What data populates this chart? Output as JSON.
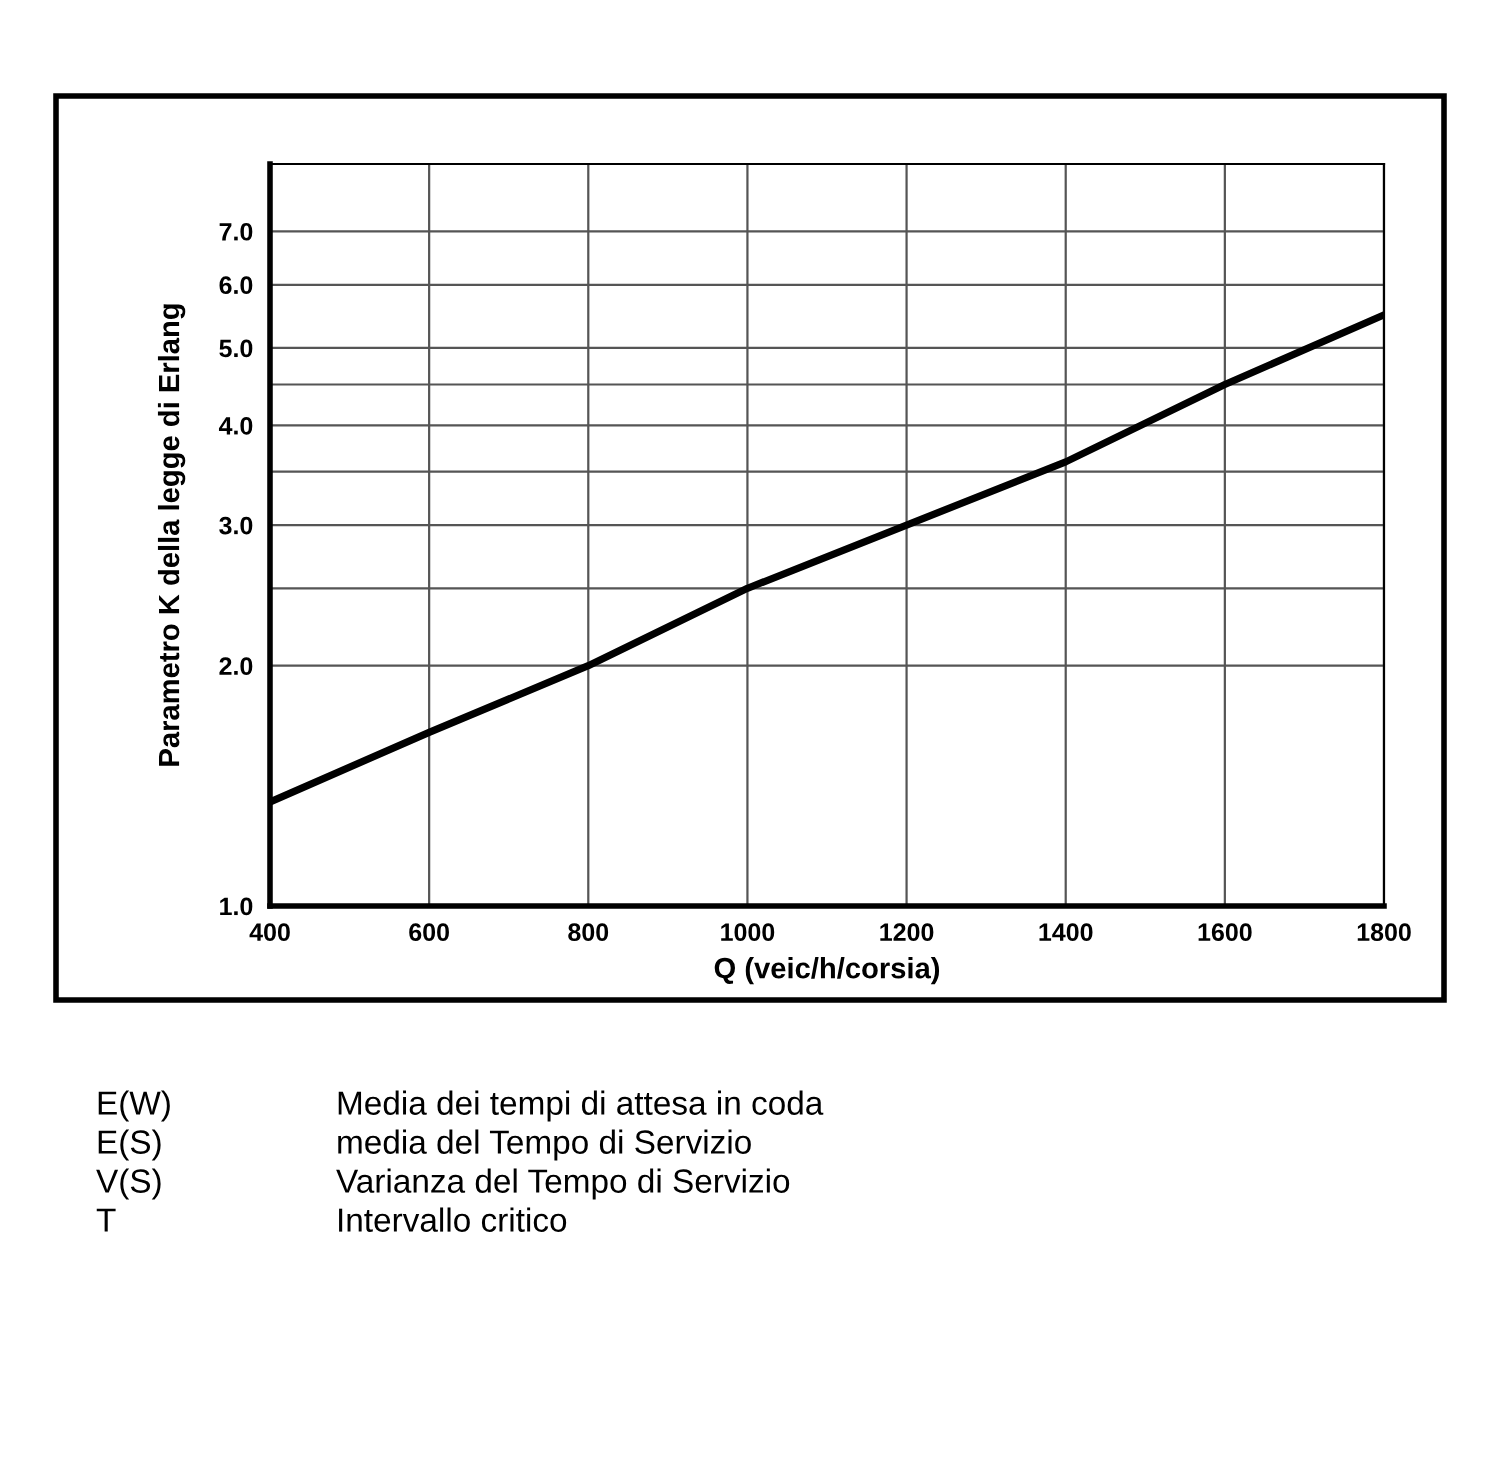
{
  "chart_data": {
    "type": "line",
    "xlabel": "Q (veic/h/corsia)",
    "ylabel": "Parametro K della legge di Erlang",
    "x": [
      400,
      600,
      800,
      1000,
      1200,
      1400,
      1600,
      1800
    ],
    "series": [
      {
        "color": "#000000",
        "values": [
          1.35,
          1.65,
          2.0,
          2.5,
          3.0,
          3.6,
          4.5,
          5.5
        ]
      }
    ],
    "log": "y",
    "xlim": [
      400,
      1800
    ],
    "xticks": [
      400,
      600,
      800,
      1000,
      1200,
      1400,
      1600,
      1800
    ],
    "ylim": [
      1,
      8.5
    ],
    "yticks": [
      {
        "value": 1,
        "label": "1.0"
      },
      {
        "value": 2,
        "label": "2.0"
      },
      {
        "value": 2.5,
        "label": null
      },
      {
        "value": 3,
        "label": "3.0"
      },
      {
        "value": 3.5,
        "label": null
      },
      {
        "value": 4,
        "label": "4.0"
      },
      {
        "value": 4.5,
        "label": null
      },
      {
        "value": 5,
        "label": "5.0"
      },
      {
        "value": 6,
        "label": "6.0"
      },
      {
        "value": 7,
        "label": "7.0"
      }
    ],
    "grid": true,
    "marker": "none",
    "line_style": "solid",
    "annotations": [
      "E(W)",
      "Media dei tempi di attesa in coda",
      "E(S)",
      "media del Tempo di Servizio",
      "V(S)",
      "Varianza del Tempo di Servizio",
      "T",
      "Intervallo critico"
    ]
  }
}
